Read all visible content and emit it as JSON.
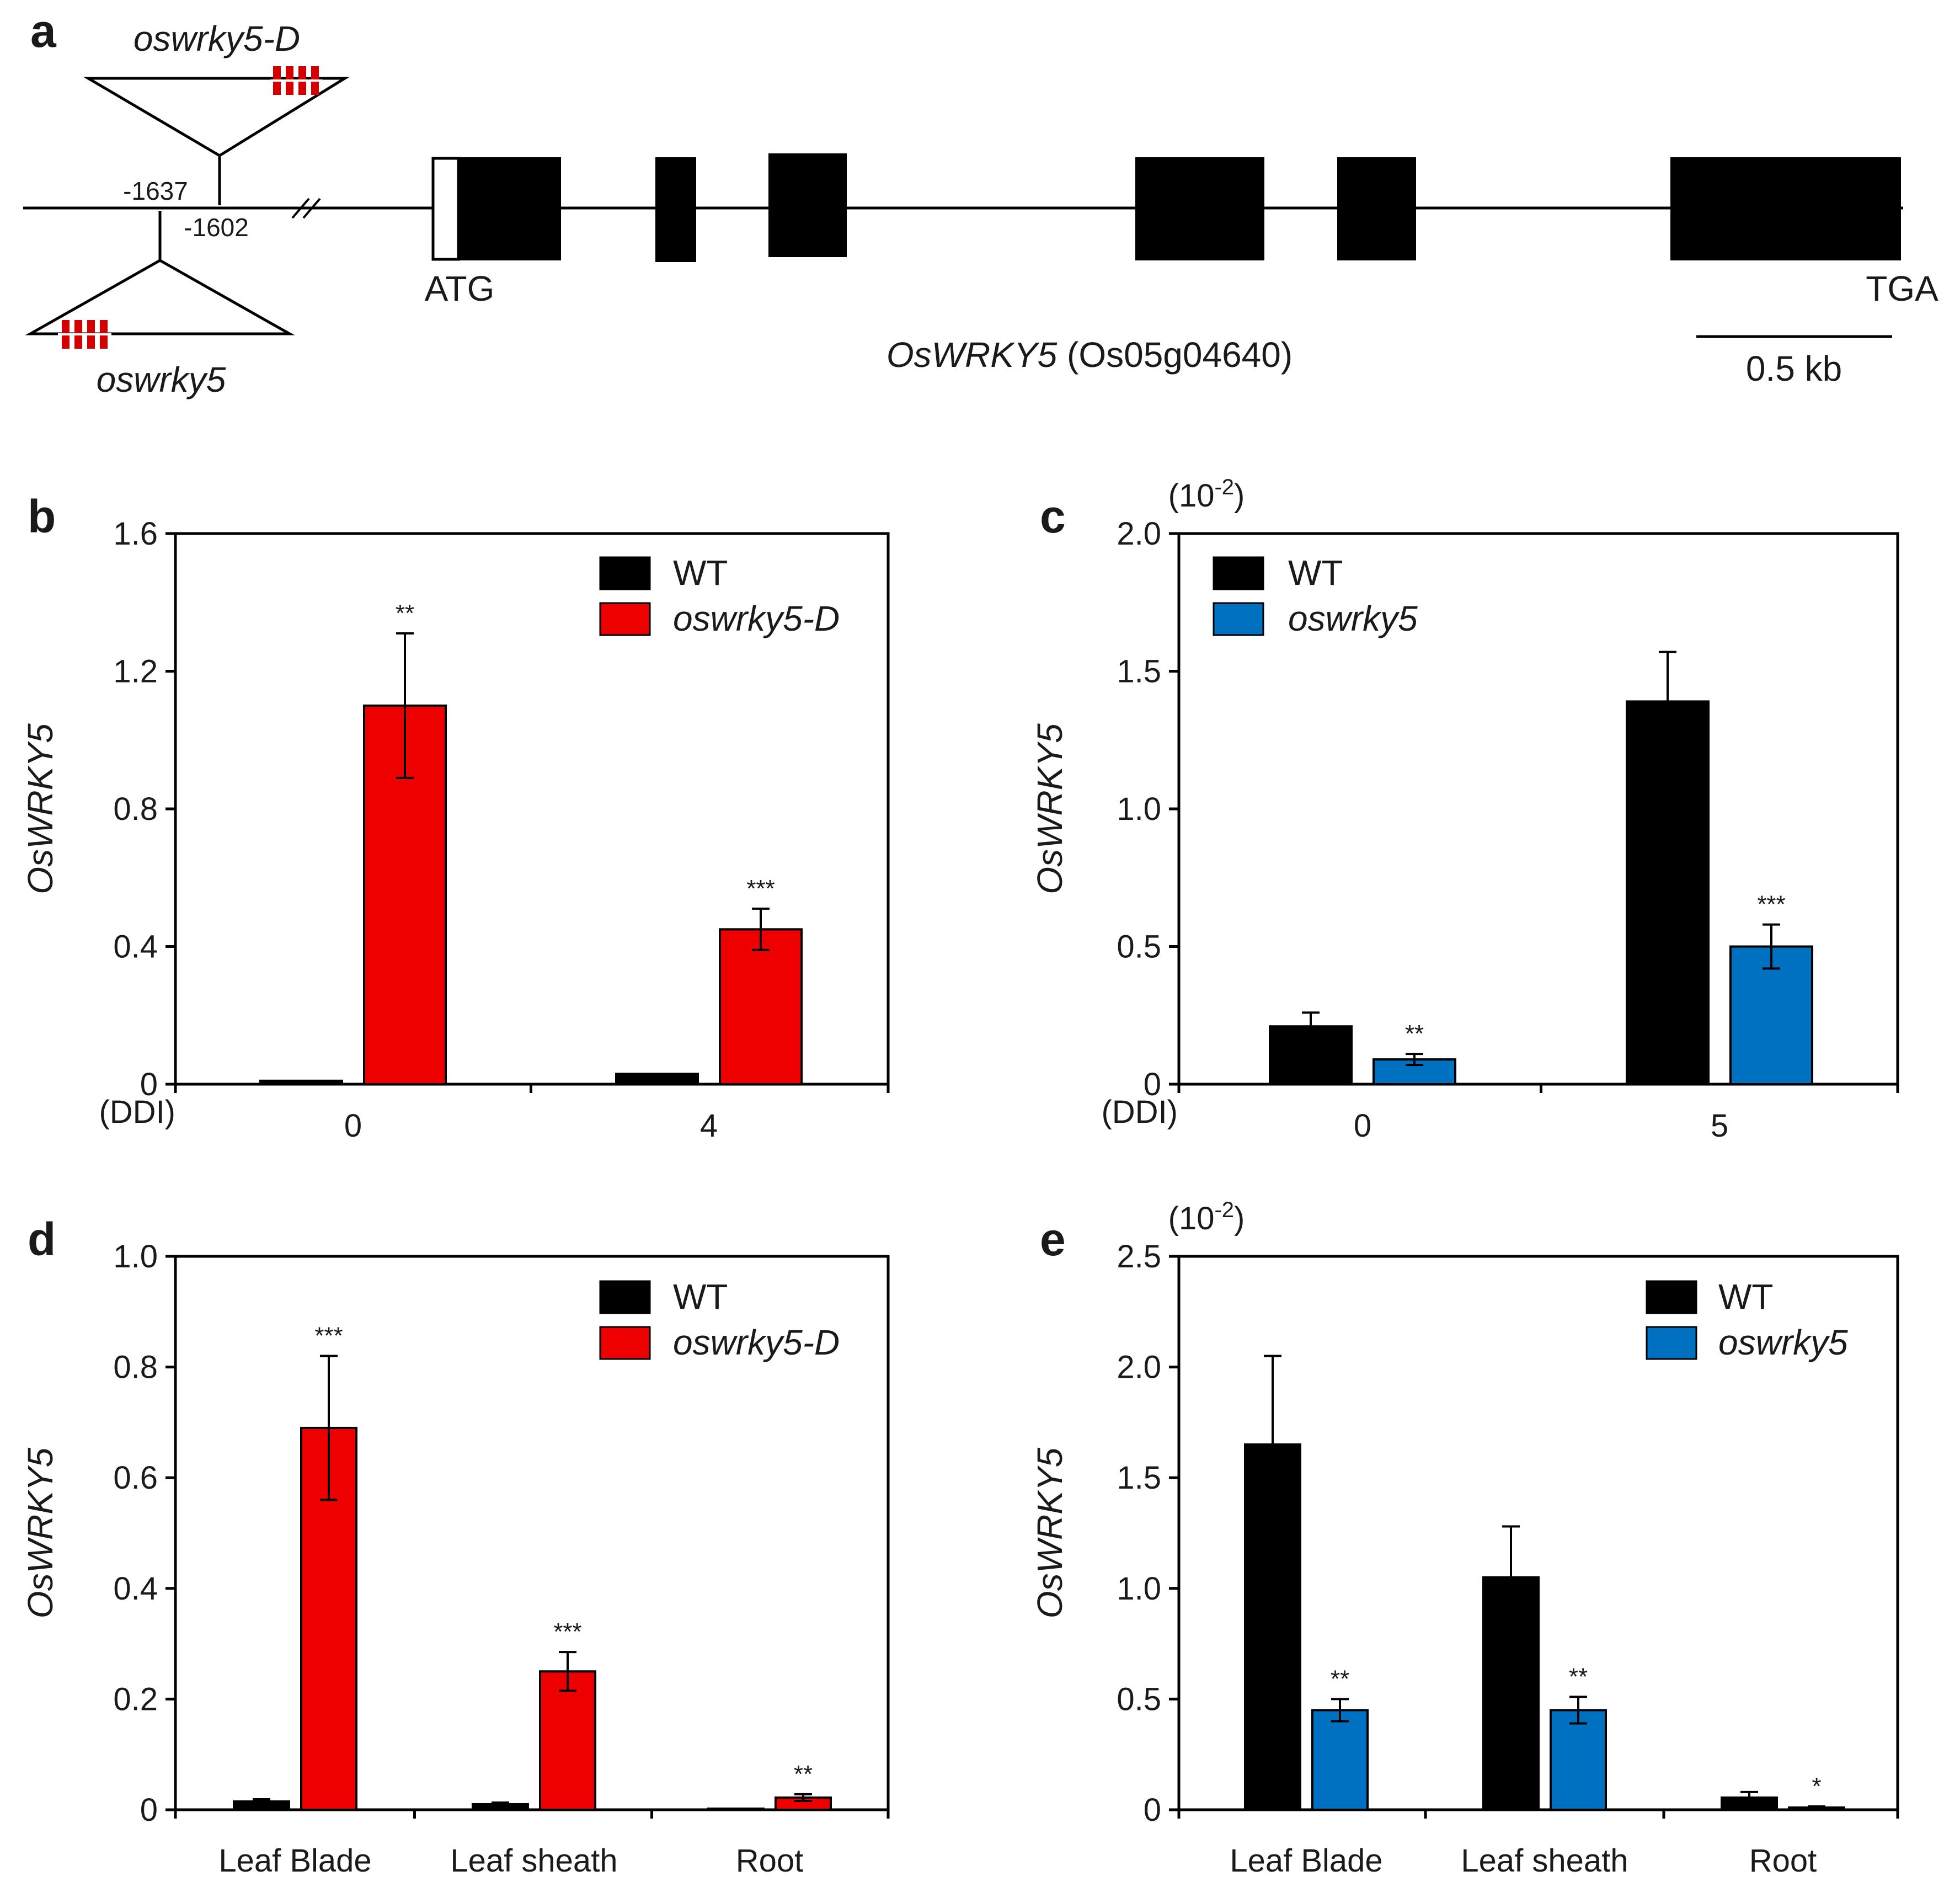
{
  "colors": {
    "wt": "#000000",
    "red": "#ee0000",
    "blue": "#0070c0",
    "insert_mark": "#d40000"
  },
  "panel_a": {
    "letter": "a",
    "top_allele": "oswrky5-D",
    "bottom_allele": "oswrky5",
    "pos_top": "-1637",
    "pos_bottom": "-1602",
    "start_codon": "ATG",
    "stop_codon": "TGA",
    "gene_name": "OsWRKY5",
    "gene_id": "(Os05g04640)",
    "scale": "0.5 kb"
  },
  "chart_data": [
    {
      "panel": "b",
      "type": "bar",
      "ylabel": "OsWRKY5",
      "unit_label": "",
      "x_prefix": "(DDI)",
      "ylim": [
        0,
        1.6
      ],
      "yticks": [
        "0",
        "0.4",
        "0.8",
        "1.2",
        "1.6"
      ],
      "categories": [
        "0",
        "4"
      ],
      "series": [
        {
          "name": "WT",
          "color_key": "wt",
          "values": [
            0.01,
            0.03
          ],
          "errors": [
            0.0,
            0.0
          ],
          "sig": [
            "",
            ""
          ]
        },
        {
          "name": "oswrky5-D",
          "color_key": "red",
          "values": [
            1.1,
            0.45
          ],
          "errors": [
            0.21,
            0.06
          ],
          "sig": [
            "**",
            "***"
          ]
        }
      ],
      "legend": [
        "WT",
        "oswrky5-D"
      ],
      "legend_italic": [
        false,
        true
      ],
      "legend_position": "top-right"
    },
    {
      "panel": "c",
      "type": "bar",
      "ylabel": "OsWRKY5",
      "unit_label": "(10-2)",
      "x_prefix": "(DDI)",
      "ylim": [
        0,
        2.0
      ],
      "yticks": [
        "0",
        "0.5",
        "1.0",
        "1.5",
        "2.0"
      ],
      "categories": [
        "0",
        "5"
      ],
      "series": [
        {
          "name": "WT",
          "color_key": "wt",
          "values": [
            0.21,
            1.39
          ],
          "errors": [
            0.05,
            0.18
          ],
          "sig": [
            "",
            ""
          ]
        },
        {
          "name": "oswrky5",
          "color_key": "blue",
          "values": [
            0.09,
            0.5
          ],
          "errors": [
            0.02,
            0.08
          ],
          "sig": [
            "**",
            "***"
          ]
        }
      ],
      "legend": [
        "WT",
        "oswrky5"
      ],
      "legend_italic": [
        false,
        true
      ],
      "legend_position": "top-left"
    },
    {
      "panel": "d",
      "type": "bar",
      "ylabel": "OsWRKY5",
      "unit_label": "",
      "x_prefix": "",
      "ylim": [
        0,
        1.0
      ],
      "yticks": [
        "0",
        "0.2",
        "0.4",
        "0.6",
        "0.8",
        "1.0"
      ],
      "categories": [
        "Leaf Blade",
        "Leaf sheath",
        "Root"
      ],
      "series": [
        {
          "name": "WT",
          "color_key": "wt",
          "values": [
            0.015,
            0.01,
            0.002
          ],
          "errors": [
            0.004,
            0.003,
            0.0
          ],
          "sig": [
            "",
            "",
            ""
          ]
        },
        {
          "name": "oswrky5-D",
          "color_key": "red",
          "values": [
            0.69,
            0.25,
            0.022
          ],
          "errors": [
            0.13,
            0.035,
            0.006
          ],
          "sig": [
            "***",
            "***",
            "**"
          ]
        }
      ],
      "legend": [
        "WT",
        "oswrky5-D"
      ],
      "legend_italic": [
        false,
        true
      ],
      "legend_position": "top-right"
    },
    {
      "panel": "e",
      "type": "bar",
      "ylabel": "OsWRKY5",
      "unit_label": "(10-2)",
      "x_prefix": "",
      "ylim": [
        0,
        2.5
      ],
      "yticks": [
        "0",
        "0.5",
        "1.0",
        "1.5",
        "2.0",
        "2.5"
      ],
      "categories": [
        "Leaf Blade",
        "Leaf sheath",
        "Root"
      ],
      "series": [
        {
          "name": "WT",
          "color_key": "wt",
          "values": [
            1.65,
            1.05,
            0.055
          ],
          "errors": [
            0.4,
            0.23,
            0.025
          ],
          "sig": [
            "",
            "",
            ""
          ]
        },
        {
          "name": "oswrky5",
          "color_key": "blue",
          "values": [
            0.45,
            0.45,
            0.01
          ],
          "errors": [
            0.05,
            0.06,
            0.005
          ],
          "sig": [
            "**",
            "**",
            "*"
          ]
        }
      ],
      "legend": [
        "WT",
        "oswrky5"
      ],
      "legend_italic": [
        false,
        true
      ],
      "legend_position": "top-right"
    }
  ]
}
